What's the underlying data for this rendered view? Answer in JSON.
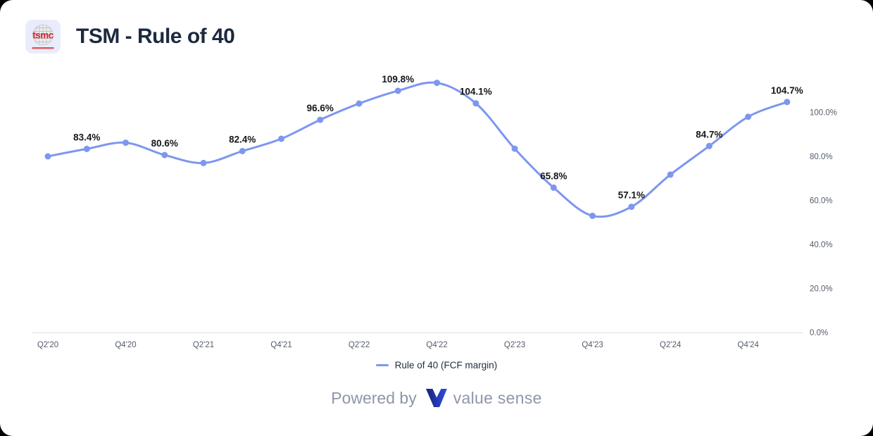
{
  "header": {
    "title": "TSM - Rule of 40",
    "logo_text": "tsmc"
  },
  "legend": {
    "label": "Rule of 40 (FCF margin)"
  },
  "footer": {
    "powered_by": "Powered by",
    "brand": "value sense"
  },
  "colors": {
    "line": "#7D97EE",
    "title": "#1C2A3E",
    "data_label": "#15171C",
    "axis_label": "#545C6A",
    "axis_line": "#DDE0E6",
    "legend_text": "#232E40",
    "footer_text": "#8E96A9",
    "logo_bg": "#E9EDFB",
    "logo_red": "#D7232E",
    "logo_underline": "#E2555C",
    "brand_gradient_start": "#1B2079",
    "brand_gradient_end": "#2E4FE6"
  },
  "chart_data": {
    "type": "line",
    "title": "TSM - Rule of 40",
    "x": [
      "Q2'20",
      "Q3'20",
      "Q4'20",
      "Q1'21",
      "Q2'21",
      "Q3'21",
      "Q4'21",
      "Q1'22",
      "Q2'22",
      "Q3'22",
      "Q4'22",
      "Q1'23",
      "Q2'23",
      "Q3'23",
      "Q4'23",
      "Q1'24",
      "Q2'24",
      "Q3'24",
      "Q4'24",
      "Q1'25"
    ],
    "series": [
      {
        "name": "Rule of 40 (FCF margin)",
        "values": [
          80.0,
          83.4,
          86.2,
          80.6,
          77.0,
          82.4,
          88.0,
          96.6,
          104.0,
          109.8,
          113.4,
          104.1,
          83.5,
          65.8,
          53.0,
          57.1,
          71.7,
          84.7,
          98.0,
          104.7
        ]
      }
    ],
    "point_labels": [
      "",
      "83.4%",
      "",
      "80.6%",
      "",
      "82.4%",
      "",
      "96.6%",
      "",
      "109.8%",
      "",
      "104.1%",
      "",
      "65.8%",
      "",
      "57.1%",
      "",
      "84.7%",
      "",
      "104.7%"
    ],
    "x_tick_labels": [
      "Q2'20",
      "Q4'20",
      "Q2'21",
      "Q4'21",
      "Q2'22",
      "Q4'22",
      "Q2'23",
      "Q4'23",
      "Q2'24",
      "Q4'24"
    ],
    "y_tick_labels": [
      "0.0%",
      "20.0%",
      "40.0%",
      "60.0%",
      "80.0%",
      "100.0%"
    ],
    "y_tick_step_pct": 20,
    "ylim": [
      0,
      120
    ],
    "grid": false,
    "legend_position": "bottom",
    "y_axis_side": "right"
  }
}
